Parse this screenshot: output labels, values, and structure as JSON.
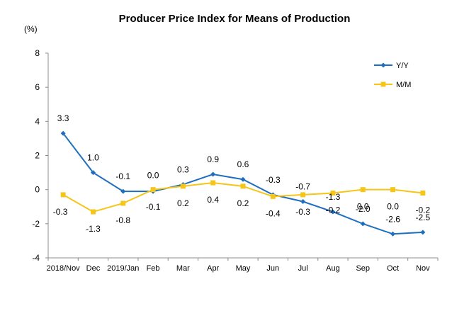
{
  "chart_data": {
    "type": "line",
    "title": "Producer Price Index for Means of Production",
    "ylabel": "(%)",
    "categories": [
      "2018/Nov",
      "Dec",
      "2019/Jan",
      "Feb",
      "Mar",
      "Apr",
      "May",
      "Jun",
      "Jul",
      "Aug",
      "Sep",
      "Oct",
      "Nov"
    ],
    "ylim": [
      -4,
      8
    ],
    "yticks": [
      "-4",
      "-2",
      "0",
      "2",
      "4",
      "6",
      "8"
    ],
    "grid": false,
    "legend": "top-right",
    "series": [
      {
        "name": "Y/Y",
        "color": "#1f6fbf",
        "marker": "diamond",
        "values": [
          3.3,
          1.0,
          -0.1,
          -0.1,
          0.3,
          0.9,
          0.6,
          -0.3,
          -0.7,
          -1.3,
          -2.0,
          -2.6,
          -2.5
        ],
        "labels": [
          "3.3",
          "1.0",
          "-0.1",
          "-0.1",
          "0.3",
          "0.9",
          "0.6",
          "-0.3",
          "-0.7",
          "-1.3",
          "-2.0",
          "-2.6",
          "-2.5"
        ]
      },
      {
        "name": "M/M",
        "color": "#f5c518",
        "marker": "square",
        "values": [
          -0.3,
          -1.3,
          -0.8,
          0.0,
          0.2,
          0.4,
          0.2,
          -0.4,
          -0.3,
          -0.2,
          0.0,
          0.0,
          -0.2
        ],
        "labels": [
          "-0.3",
          "-1.3",
          "-0.8",
          "0.0",
          "0.2",
          "0.4",
          "0.2",
          "-0.4",
          "-0.3",
          "-0.2",
          "0.0",
          "0.0",
          "-0.2"
        ]
      }
    ]
  }
}
